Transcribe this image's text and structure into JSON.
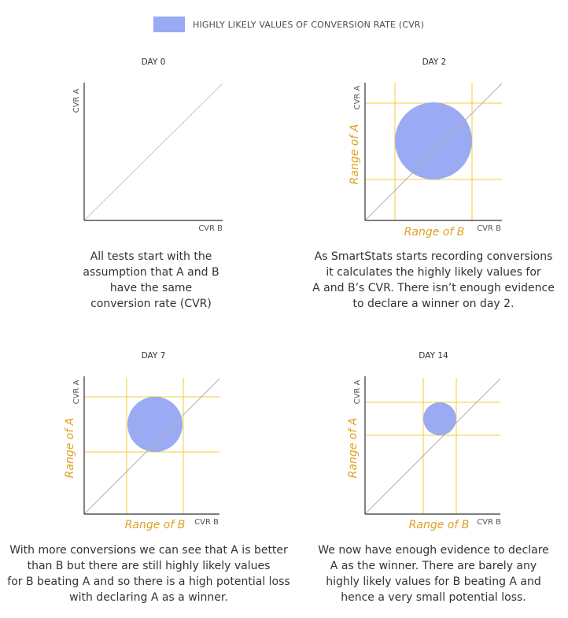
{
  "legend": {
    "label": "HIGHLY LIKELY VALUES OF CONVERSION RATE (CVR)",
    "color": "#9aaaf3"
  },
  "colors": {
    "range_line": "#f0cc3a",
    "range_text": "#e0a020",
    "diagonal": "#c8c8c8",
    "axis": "#333333"
  },
  "axes": {
    "y": "CVR A",
    "x": "CVR B"
  },
  "range": {
    "y": "Range of A",
    "x": "Range of B"
  },
  "panels": [
    {
      "title": "DAY 0",
      "caption": [
        "All tests start with the",
        "assumption that A and B",
        "have the same",
        "conversion rate (CVR)"
      ]
    },
    {
      "title": "DAY 2",
      "caption": [
        "As SmartStats starts recording conversions",
        "it calculates the highly likely values for",
        "A and B’s CVR. There isn’t enough evidence",
        "to declare a winner on day 2."
      ]
    },
    {
      "title": "DAY 7",
      "caption": [
        "With more conversions we can see that A is better",
        "than B but there are still highly likely values",
        "for B beating A and so there is a high potential loss",
        "with declaring A as a winner."
      ]
    },
    {
      "title": "DAY 14",
      "caption": [
        "We now have enough evidence to declare",
        "A as the winner. There are barely any",
        "highly likely values for B beating A and",
        "hence a very small potential loss."
      ]
    }
  ]
}
